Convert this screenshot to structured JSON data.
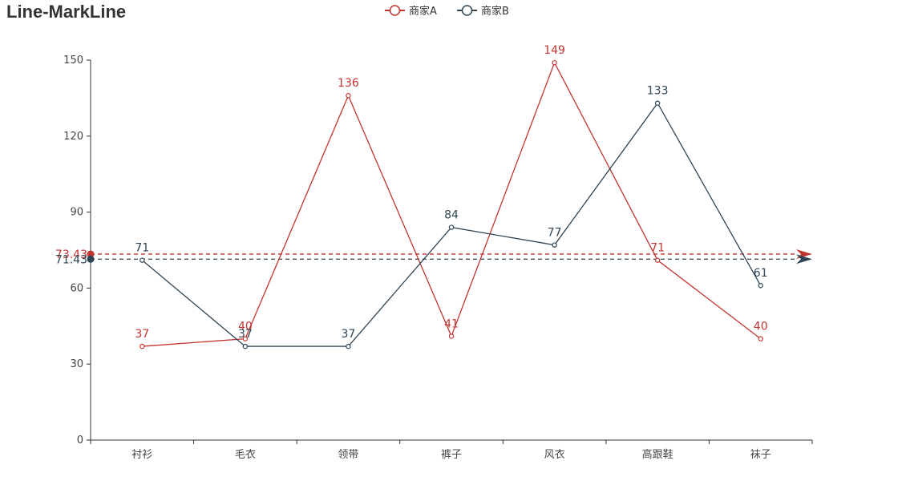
{
  "chart_data": {
    "type": "line",
    "title": "Line-MarkLine",
    "xlabel": "",
    "ylabel": "",
    "categories": [
      "衬衫",
      "毛衣",
      "领带",
      "裤子",
      "风衣",
      "高跟鞋",
      "袜子"
    ],
    "ylim": [
      0,
      150
    ],
    "yticks": [
      0,
      30,
      60,
      90,
      120,
      150
    ],
    "legend_position": "top-center",
    "grid": false,
    "series": [
      {
        "name": "商家A",
        "color": "#c23531",
        "values": [
          37,
          40,
          136,
          41,
          149,
          71,
          40
        ],
        "markline": {
          "value": 73.43,
          "label": "73.43"
        }
      },
      {
        "name": "商家B",
        "color": "#2f4554",
        "values": [
          71,
          37,
          37,
          84,
          77,
          133,
          61
        ],
        "markline": {
          "value": 71.43,
          "label": "71.43"
        }
      }
    ]
  }
}
